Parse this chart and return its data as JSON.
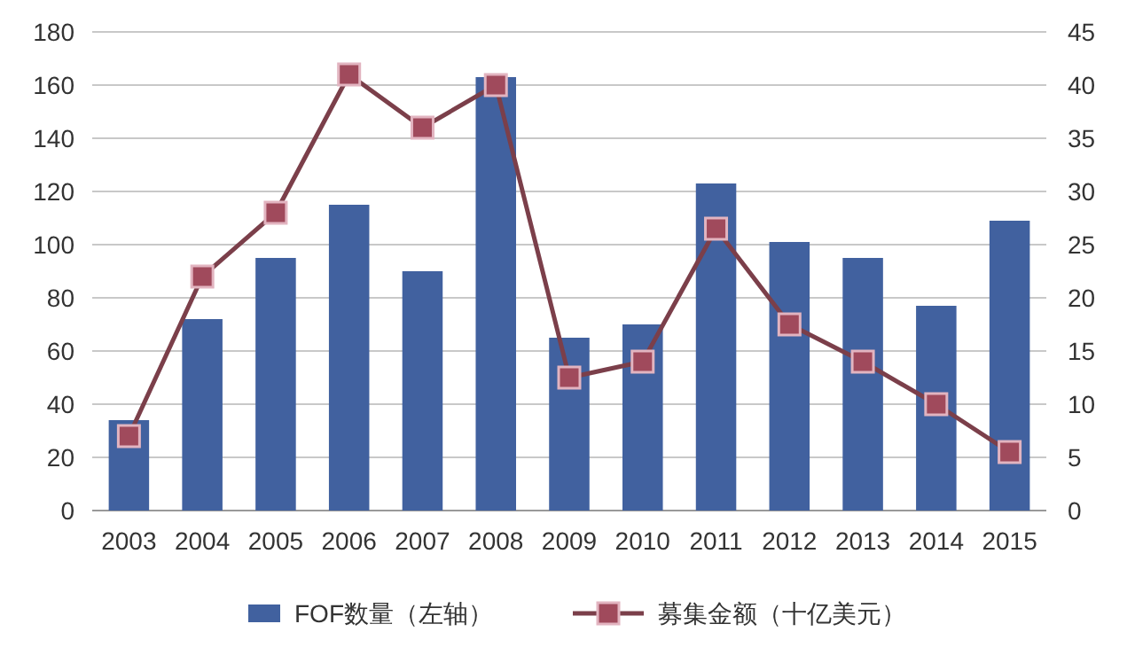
{
  "chart_data": {
    "type": "bar",
    "categories": [
      "2003",
      "2004",
      "2005",
      "2006",
      "2007",
      "2008",
      "2009",
      "2010",
      "2011",
      "2012",
      "2013",
      "2014",
      "2015"
    ],
    "series": [
      {
        "name": "FOF数量（左轴）",
        "color": "#41619f",
        "values": [
          34,
          72,
          95,
          115,
          90,
          163,
          65,
          70,
          123,
          101,
          95,
          77,
          109
        ]
      },
      {
        "name": "募集金额（十亿美元）",
        "type": "line",
        "axis": "y2",
        "color": "#7b3f4a",
        "values": [
          7,
          22,
          28,
          41,
          36,
          40,
          12.5,
          14,
          26.5,
          17.5,
          14,
          10,
          5.5
        ]
      }
    ],
    "ylim": [
      0,
      180
    ],
    "yticks": [
      0,
      20,
      40,
      60,
      80,
      100,
      120,
      140,
      160,
      180
    ],
    "y2lim": [
      0,
      45
    ],
    "y2ticks": [
      0,
      5,
      10,
      15,
      20,
      25,
      30,
      35,
      40,
      45
    ],
    "grid": "y",
    "legend": "bottom",
    "marker": "square"
  }
}
